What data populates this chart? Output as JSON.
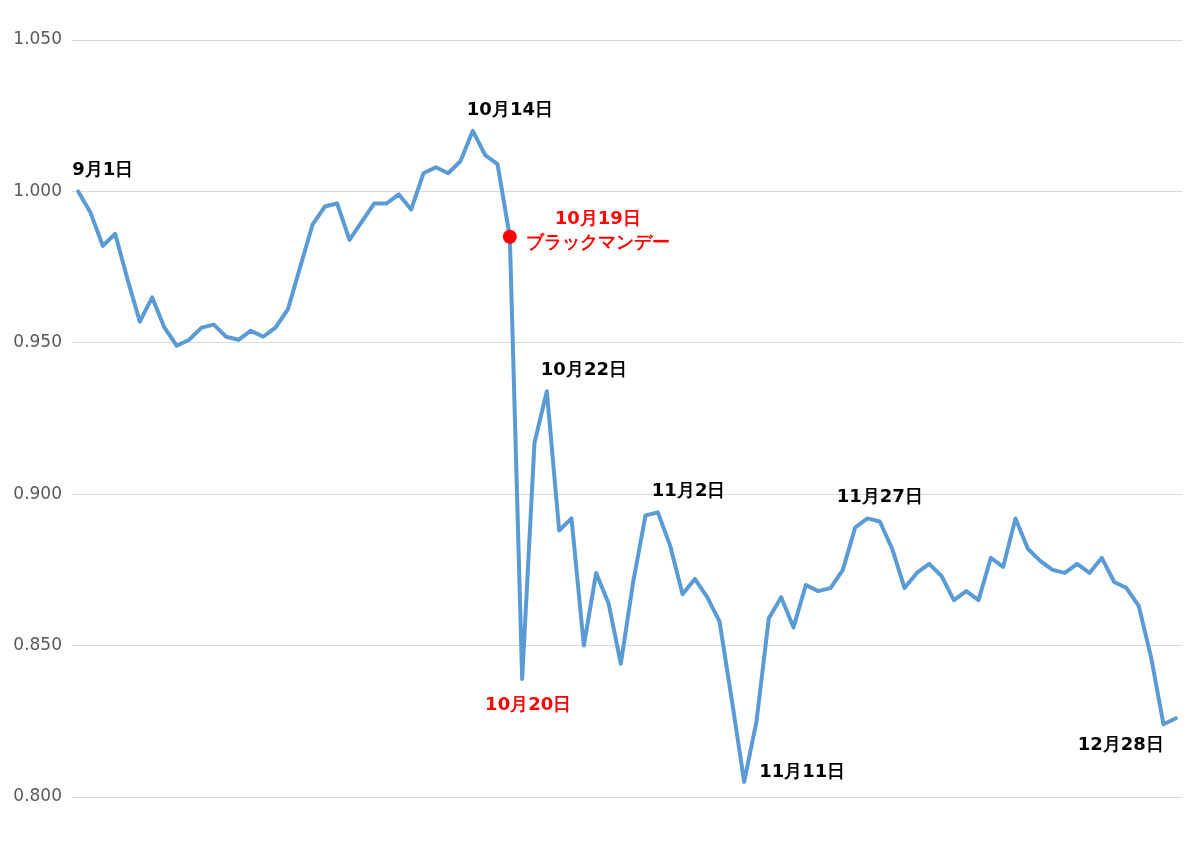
{
  "chart_data": {
    "type": "line",
    "categories": [
      null,
      null,
      null,
      null,
      null,
      null,
      null,
      null,
      null,
      null,
      null,
      null,
      null,
      null,
      null,
      null,
      null,
      null,
      null,
      null,
      null,
      null,
      null,
      null,
      null,
      null,
      null,
      null,
      null,
      null,
      null,
      null,
      null,
      null,
      null,
      null,
      null,
      null,
      null,
      null,
      null,
      null,
      null,
      null,
      null,
      null,
      null,
      null,
      null,
      null,
      null,
      null,
      null,
      null,
      null,
      null,
      null,
      null,
      null,
      null,
      null,
      null,
      null,
      null,
      null,
      null,
      null,
      null,
      null,
      null,
      null,
      null,
      null,
      null,
      null,
      null,
      null,
      null,
      null,
      null,
      null,
      null,
      null,
      null,
      null,
      null,
      null,
      null,
      null,
      null
    ],
    "series": [
      {
        "color": "#5b9bd5",
        "values": [
          1.0,
          0.993,
          0.982,
          0.986,
          0.971,
          0.957,
          0.965,
          0.955,
          0.949,
          0.951,
          0.955,
          0.956,
          0.952,
          0.951,
          0.954,
          0.952,
          0.955,
          0.961,
          0.975,
          0.989,
          0.995,
          0.996,
          0.984,
          0.99,
          0.996,
          0.996,
          0.999,
          0.994,
          1.006,
          1.008,
          1.006,
          1.01,
          1.02,
          1.012,
          1.009,
          0.985,
          0.839,
          0.917,
          0.934,
          0.888,
          0.892,
          0.85,
          0.874,
          0.864,
          0.844,
          0.871,
          0.893,
          0.894,
          0.883,
          0.867,
          0.872,
          0.866,
          0.858,
          0.832,
          0.805,
          0.825,
          0.859,
          0.866,
          0.856,
          0.87,
          0.868,
          0.869,
          0.875,
          0.889,
          0.892,
          0.891,
          0.882,
          0.869,
          0.874,
          0.877,
          0.873,
          0.865,
          0.868,
          0.865,
          0.879,
          0.876,
          0.892,
          0.882,
          0.878,
          0.875,
          0.874,
          0.877,
          0.874,
          0.879,
          0.871,
          0.869,
          0.863,
          0.846,
          0.824,
          0.826
        ]
      },
      {
        "type": "scatter",
        "name": "ブラックマンデー",
        "color": "#ff0000",
        "marker": "circle",
        "values": [
          null,
          null,
          null,
          null,
          null,
          null,
          null,
          null,
          null,
          null,
          null,
          null,
          null,
          null,
          null,
          null,
          null,
          null,
          null,
          null,
          null,
          null,
          null,
          null,
          null,
          null,
          null,
          null,
          null,
          null,
          null,
          null,
          null,
          null,
          null,
          0.985,
          null,
          null,
          null,
          null,
          null,
          null,
          null,
          null,
          null,
          null,
          null,
          null,
          null,
          null,
          null,
          null,
          null,
          null,
          null,
          null,
          null,
          null,
          null,
          null,
          null,
          null,
          null,
          null,
          null,
          null,
          null,
          null,
          null,
          null,
          null,
          null,
          null,
          null,
          null,
          null,
          null,
          null,
          null,
          null,
          null,
          null,
          null,
          null,
          null,
          null,
          null,
          null,
          null,
          null
        ]
      }
    ],
    "ylim": [
      0.8,
      1.05
    ],
    "yticks": [
      {
        "value": 0.8,
        "label": "0.800"
      },
      {
        "value": 0.85,
        "label": "0.850"
      },
      {
        "value": 0.9,
        "label": "0.900"
      },
      {
        "value": 0.95,
        "label": "0.950"
      },
      {
        "value": 1.0,
        "label": "1.000"
      },
      {
        "value": 1.05,
        "label": "1.050"
      }
    ],
    "grid": "y",
    "tick_labels": "y",
    "line_style": "solid",
    "annotations": [
      "9月1日",
      "10月14日",
      "10月19日",
      "10月20日",
      "10月22日",
      "11月2日",
      "11月11日",
      "11月27日",
      "12月28日"
    ]
  }
}
